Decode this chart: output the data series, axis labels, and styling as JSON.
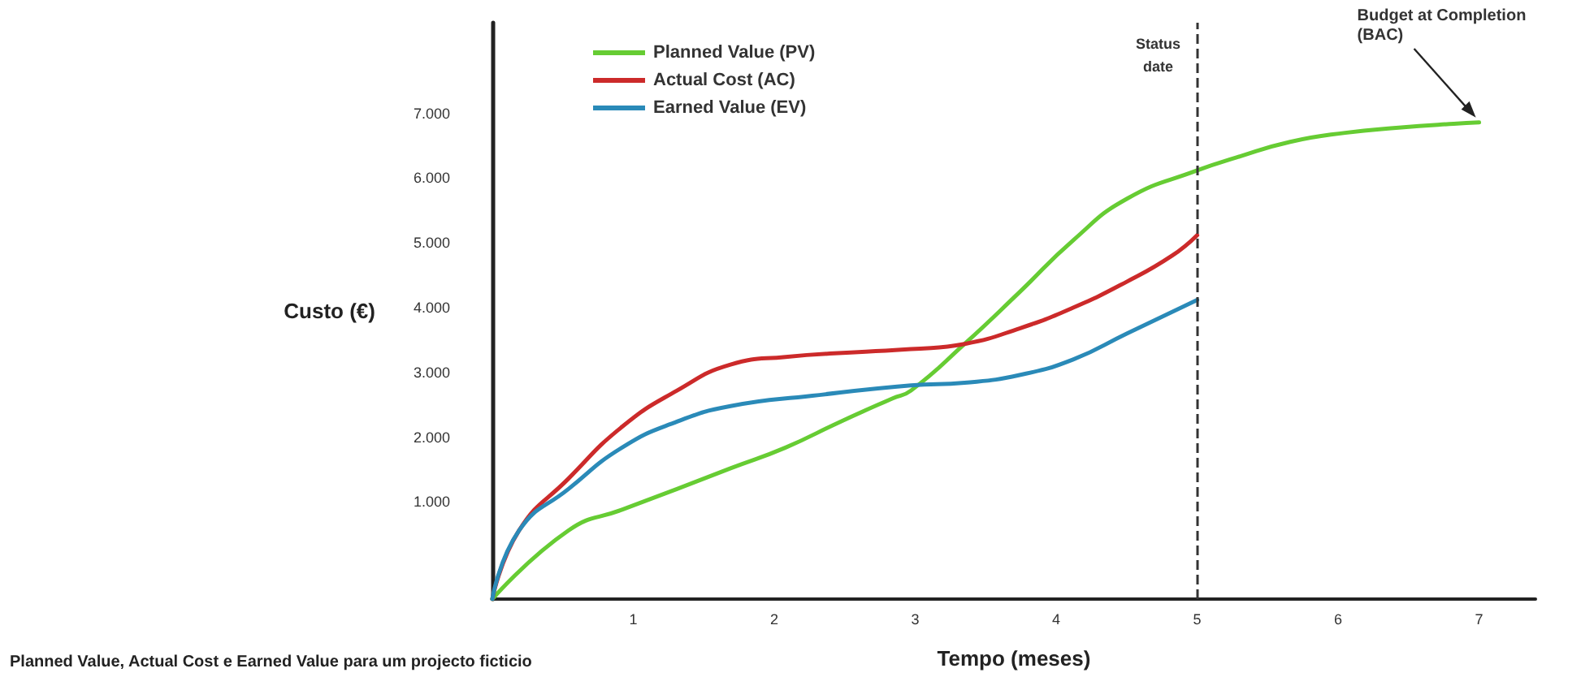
{
  "chart_data": {
    "type": "line",
    "xlabel": "Tempo (meses)",
    "ylabel": "Custo (€)",
    "annotations": [
      {
        "text": "Budget at Completion\n(BAC)",
        "x": 7,
        "y": 6860
      },
      "Planned Value, Actual Cost e Earned Value para um projecto ficticio"
    ],
    "xlim": [
      0,
      7.4
    ],
    "xticks": [
      1,
      2,
      3,
      4,
      5,
      6,
      7
    ],
    "ylim": [
      -500,
      8400
    ],
    "yticks": [
      {
        "value": 1000,
        "label": "1.000"
      },
      {
        "value": 2000,
        "label": "2.000"
      },
      {
        "value": 3000,
        "label": "3.000"
      },
      {
        "value": 4000,
        "label": "4.000"
      },
      {
        "value": 5000,
        "label": "5.000"
      },
      {
        "value": 6000,
        "label": "6.000"
      },
      {
        "value": 7000,
        "label": "7.000"
      }
    ],
    "grid": false,
    "legend": "top left",
    "marker": "none",
    "line_style": "solid",
    "ref_lines": [
      {
        "axis": "x",
        "value": 5,
        "label": "Status\ndate",
        "line_style": "dashed",
        "color": "#333333"
      }
    ],
    "series": [
      {
        "name": "Planned Value (PV)",
        "color": "#66cc33",
        "x": [
          0,
          0.54,
          0.92,
          1.31,
          1.69,
          2.08,
          2.47,
          2.84,
          2.97,
          3.35,
          3.74,
          4.12,
          4.5,
          5,
          5.28,
          5.66,
          6.05,
          6.43,
          6.82,
          7
        ],
        "values": [
          -500,
          560,
          880,
          1200,
          1520,
          1840,
          2240,
          2600,
          2720,
          3440,
          4240,
          5040,
          5680,
          6120,
          6320,
          6560,
          6700,
          6780,
          6840,
          6860
        ]
      },
      {
        "name": "Actual Cost (AC)",
        "color": "#cc2a2a",
        "x": [
          0,
          0.19,
          0.54,
          0.92,
          1.31,
          1.69,
          2.08,
          2.65,
          2.97,
          3.35,
          3.74,
          4.12,
          4.5,
          4.82,
          5
        ],
        "values": [
          -500,
          560,
          1360,
          2160,
          2720,
          3120,
          3240,
          3320,
          3360,
          3440,
          3680,
          4000,
          4400,
          4800,
          5120
        ]
      },
      {
        "name": "Earned Value (EV)",
        "color": "#2a8ab8",
        "x": [
          0,
          0.19,
          0.54,
          0.92,
          1.31,
          1.69,
          2.27,
          2.97,
          3.35,
          3.74,
          4.12,
          4.5,
          5
        ],
        "values": [
          -500,
          560,
          1200,
          1840,
          2240,
          2480,
          2640,
          2800,
          2840,
          2960,
          3200,
          3600,
          4120
        ]
      }
    ]
  }
}
